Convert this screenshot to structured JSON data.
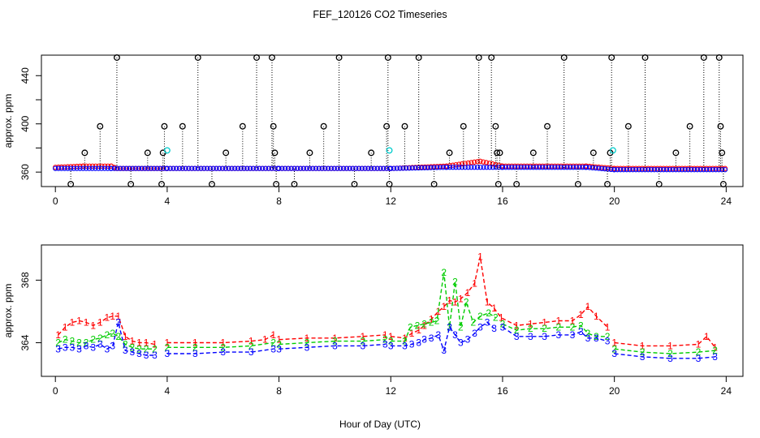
{
  "title": "FEF_120126  CO2 Timeseries",
  "xlabel": "Hour of Day (UTC)",
  "colors": {
    "flagged": "#000000",
    "outlier": "#00cccc",
    "s1": "#ff0000",
    "s2": "#00cc00",
    "s3": "#0000ff"
  },
  "chart_data": [
    {
      "id": "top",
      "type": "scatter",
      "ylabel": "approx. ppm",
      "xlim": [
        -0.5,
        24.6
      ],
      "ylim": [
        348,
        457
      ],
      "xticks": [
        "0",
        "4",
        "8",
        "12",
        "16",
        "20",
        "24"
      ],
      "yticks": [
        "360",
        "400",
        "440"
      ],
      "flagged_points": {
        "x": [
          0.55,
          1.05,
          1.6,
          2.2,
          2.7,
          3.3,
          3.8,
          3.85,
          3.9,
          4.55,
          5.1,
          5.6,
          6.1,
          6.7,
          7.2,
          7.75,
          7.8,
          7.85,
          7.9,
          8.55,
          9.1,
          9.6,
          10.15,
          10.7,
          11.3,
          11.85,
          11.9,
          11.95,
          12.5,
          13.0,
          13.55,
          14.1,
          14.6,
          15.15,
          15.6,
          15.75,
          15.8,
          15.85,
          15.9,
          16.5,
          17.1,
          17.6,
          18.2,
          18.7,
          19.25,
          19.75,
          19.85,
          19.9,
          20.5,
          21.1,
          21.6,
          22.2,
          22.7,
          23.2,
          23.75,
          23.8,
          23.85,
          23.9
        ],
        "y": [
          350,
          376,
          398,
          455,
          350,
          376,
          350,
          376,
          398,
          398,
          455,
          350,
          376,
          398,
          455,
          455,
          398,
          376,
          350,
          350,
          376,
          398,
          455,
          350,
          376,
          398,
          455,
          350,
          398,
          455,
          350,
          376,
          398,
          455,
          455,
          398,
          376,
          350,
          376,
          350,
          376,
          398,
          455,
          350,
          376,
          350,
          376,
          455,
          398,
          455,
          350,
          376,
          398,
          455,
          455,
          398,
          376,
          350
        ]
      },
      "outlier_points": {
        "x": [
          4.0,
          11.95,
          19.95
        ],
        "y": [
          378,
          378,
          378
        ]
      },
      "series_baseline": [
        {
          "name": "1",
          "x": [
            0,
            1,
            2,
            2.2,
            4,
            8,
            12,
            13,
            14,
            15.2,
            16,
            19,
            20,
            24
          ],
          "y": [
            364,
            365,
            365,
            363,
            363,
            363,
            363,
            364,
            365,
            369,
            365,
            365,
            363,
            363
          ]
        },
        {
          "name": "3",
          "x": [
            0,
            2,
            4,
            8,
            12,
            14,
            16,
            19,
            20,
            24
          ],
          "y": [
            363,
            363,
            363,
            363,
            363,
            364,
            364,
            364,
            362,
            362
          ]
        }
      ]
    },
    {
      "id": "bottom",
      "type": "line",
      "ylabel": "approx. ppm",
      "xlim": [
        -0.5,
        24.6
      ],
      "ylim": [
        361.85,
        370.25
      ],
      "xticks": [
        "0",
        "4",
        "8",
        "12",
        "16",
        "20",
        "24"
      ],
      "yticks": [
        "364",
        "368"
      ],
      "series": [
        {
          "name": "1",
          "x": [
            0.1,
            0.35,
            0.6,
            0.85,
            1.1,
            1.35,
            1.6,
            1.85,
            2.05,
            2.25,
            2.5,
            2.75,
            3.0,
            3.25,
            3.55,
            4.0,
            5.0,
            6.0,
            7.0,
            7.5,
            7.8,
            8.0,
            9.0,
            10.0,
            11.0,
            11.8,
            12.0,
            12.5,
            12.75,
            13.0,
            13.2,
            13.45,
            13.7,
            13.9,
            14.1,
            14.3,
            14.5,
            14.75,
            15.0,
            15.2,
            15.45,
            15.7,
            15.95,
            16.5,
            17.0,
            17.5,
            18.0,
            18.5,
            18.8,
            19.05,
            19.35,
            19.75,
            20.0,
            21.0,
            22.0,
            23.0,
            23.3,
            23.6
          ],
          "y": [
            364.5,
            365.0,
            365.3,
            365.4,
            365.3,
            365.1,
            365.3,
            365.6,
            365.7,
            365.7,
            364.4,
            364.1,
            364.0,
            364.0,
            363.9,
            364.0,
            364.0,
            364.0,
            364.1,
            364.2,
            364.5,
            364.2,
            364.3,
            364.3,
            364.4,
            364.5,
            364.4,
            364.3,
            364.6,
            364.8,
            365.1,
            365.5,
            366.0,
            366.3,
            366.7,
            366.6,
            366.8,
            367.2,
            367.8,
            369.5,
            366.6,
            366.2,
            365.6,
            365.1,
            365.2,
            365.3,
            365.4,
            365.4,
            365.8,
            366.3,
            365.7,
            365.0,
            364.0,
            363.8,
            363.8,
            363.9,
            364.4,
            363.7
          ]
        },
        {
          "name": "2",
          "x": [
            0.1,
            0.35,
            0.6,
            0.85,
            1.1,
            1.35,
            1.6,
            1.85,
            2.05,
            2.25,
            2.5,
            2.75,
            3.0,
            3.25,
            3.55,
            4.0,
            5.0,
            6.0,
            7.0,
            7.8,
            8.0,
            9.0,
            10.0,
            11.0,
            11.8,
            12.0,
            12.5,
            12.7,
            12.95,
            13.2,
            13.45,
            13.65,
            13.9,
            14.1,
            14.3,
            14.5,
            14.7,
            14.95,
            15.2,
            15.5,
            15.75,
            16.0,
            16.5,
            17.0,
            17.5,
            18.0,
            18.5,
            18.8,
            19.05,
            19.35,
            19.75,
            20.0,
            21.0,
            22.0,
            23.0,
            23.6
          ],
          "y": [
            364.0,
            364.2,
            364.1,
            364.0,
            364.0,
            364.2,
            364.3,
            364.5,
            364.6,
            364.4,
            363.9,
            363.7,
            363.6,
            363.6,
            363.6,
            363.7,
            363.7,
            363.7,
            363.8,
            364.0,
            363.9,
            364.0,
            364.1,
            364.1,
            364.2,
            364.1,
            364.1,
            365.0,
            365.1,
            365.2,
            365.3,
            365.4,
            368.5,
            365.0,
            367.9,
            365.0,
            366.6,
            365.3,
            365.7,
            365.9,
            365.6,
            365.2,
            364.8,
            364.9,
            364.9,
            365.0,
            365.0,
            365.1,
            364.6,
            364.4,
            364.4,
            363.6,
            363.4,
            363.3,
            363.4,
            363.5
          ]
        },
        {
          "name": "3",
          "x": [
            0.1,
            0.35,
            0.6,
            0.85,
            1.1,
            1.35,
            1.6,
            1.85,
            2.05,
            2.25,
            2.5,
            2.75,
            3.0,
            3.25,
            3.55,
            4.0,
            5.0,
            6.0,
            7.0,
            7.8,
            8.0,
            9.0,
            10.0,
            11.0,
            11.8,
            12.0,
            12.5,
            12.75,
            13.0,
            13.2,
            13.45,
            13.7,
            13.9,
            14.1,
            14.3,
            14.5,
            14.75,
            15.0,
            15.2,
            15.45,
            15.7,
            16.0,
            16.5,
            17.0,
            17.5,
            18.0,
            18.5,
            18.8,
            19.05,
            19.35,
            19.75,
            20.0,
            21.0,
            22.0,
            23.0,
            23.6
          ],
          "y": [
            363.6,
            363.7,
            363.7,
            363.6,
            363.8,
            363.7,
            363.9,
            363.6,
            363.8,
            365.3,
            363.5,
            363.4,
            363.3,
            363.2,
            363.2,
            363.3,
            363.3,
            363.4,
            363.4,
            363.6,
            363.6,
            363.7,
            363.8,
            363.8,
            363.9,
            363.8,
            363.8,
            363.9,
            364.0,
            364.2,
            364.3,
            364.5,
            363.5,
            365.0,
            364.5,
            364.0,
            364.2,
            364.6,
            365.0,
            365.3,
            364.9,
            365.0,
            364.4,
            364.4,
            364.4,
            364.5,
            364.5,
            364.7,
            364.3,
            364.3,
            364.1,
            363.3,
            363.1,
            363.0,
            363.0,
            363.1
          ]
        }
      ]
    }
  ]
}
